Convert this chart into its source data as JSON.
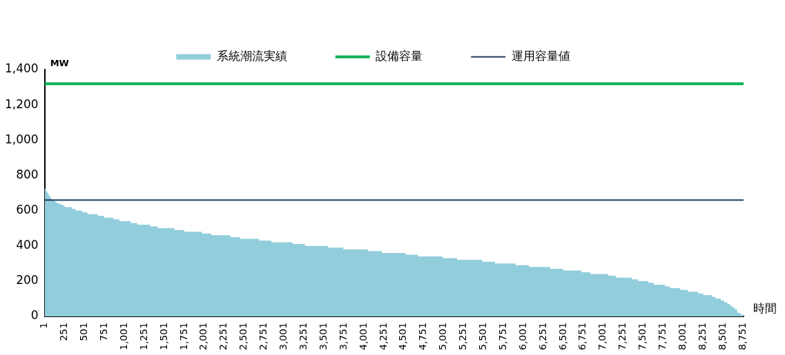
{
  "chart_data": {
    "type": "area",
    "xlabel": "時間",
    "ylabel": "MW",
    "legend": "top",
    "xlim": [
      1,
      8760
    ],
    "ylim": [
      0,
      1400
    ],
    "yticks": [
      0,
      200,
      400,
      600,
      800,
      {
        "value": 1000,
        "label": "1,000"
      },
      {
        "value": 1200,
        "label": "1,200"
      },
      {
        "value": 1400,
        "label": "1,400"
      }
    ],
    "xticks": [
      1,
      251,
      501,
      751,
      {
        "value": 1001,
        "label": "1,001"
      },
      {
        "value": 1251,
        "label": "1,251"
      },
      {
        "value": 1501,
        "label": "1,501"
      },
      {
        "value": 1751,
        "label": "1,751"
      },
      {
        "value": 2001,
        "label": "2,001"
      },
      {
        "value": 2251,
        "label": "2,251"
      },
      {
        "value": 2501,
        "label": "2,501"
      },
      {
        "value": 2751,
        "label": "2,751"
      },
      {
        "value": 3001,
        "label": "3,001"
      },
      {
        "value": 3251,
        "label": "3,251"
      },
      {
        "value": 3501,
        "label": "3,501"
      },
      {
        "value": 3751,
        "label": "3,751"
      },
      {
        "value": 4001,
        "label": "4,001"
      },
      {
        "value": 4251,
        "label": "4,251"
      },
      {
        "value": 4501,
        "label": "4,501"
      },
      {
        "value": 4751,
        "label": "4,751"
      },
      {
        "value": 5001,
        "label": "5,001"
      },
      {
        "value": 5251,
        "label": "5,251"
      },
      {
        "value": 5501,
        "label": "5,501"
      },
      {
        "value": 5751,
        "label": "5,751"
      },
      {
        "value": 6001,
        "label": "6,001"
      },
      {
        "value": 6251,
        "label": "6,251"
      },
      {
        "value": 6501,
        "label": "6,501"
      },
      {
        "value": 6751,
        "label": "6,751"
      },
      {
        "value": 7001,
        "label": "7,001"
      },
      {
        "value": 7251,
        "label": "7,251"
      },
      {
        "value": 7501,
        "label": "7,501"
      },
      {
        "value": 7751,
        "label": "7,751"
      },
      {
        "value": 8001,
        "label": "8,001"
      },
      {
        "value": 8251,
        "label": "8,251"
      },
      {
        "value": 8501,
        "label": "8,501"
      },
      {
        "value": 8751,
        "label": "8,751"
      }
    ],
    "series": [
      {
        "name": "系統潮流実績",
        "color": "#92cddc",
        "x": [
          1,
          20,
          40,
          60,
          86,
          130,
          175,
          234,
          264,
          347,
          347,
          388,
          388,
          471,
          471,
          536,
          536,
          667,
          667,
          747,
          747,
          862,
          862,
          939,
          939,
          1078,
          1078,
          1161,
          1161,
          1324,
          1324,
          1419,
          1419,
          1627,
          1627,
          1751,
          1751,
          1973,
          1973,
          2089,
          2089,
          2329,
          2329,
          2450,
          2450,
          2687,
          2687,
          2841,
          2841,
          3108,
          3108,
          3262,
          3262,
          3552,
          3552,
          3745,
          3745,
          4050,
          4050,
          4228,
          4228,
          4524,
          4524,
          4678,
          4678,
          4989,
          4989,
          5170,
          5170,
          5484,
          5484,
          5646,
          5646,
          5902,
          5902,
          6071,
          6071,
          6337,
          6337,
          6499,
          6499,
          6727,
          6727,
          6840,
          6840,
          7065,
          7065,
          7160,
          7160,
          7358,
          7358,
          7438,
          7438,
          7563,
          7563,
          7634,
          7634,
          7776,
          7776,
          7838,
          7838,
          7966,
          7966,
          8063,
          8063,
          8191,
          8191,
          8256,
          8256,
          8371,
          8371,
          8410,
          8410,
          8475,
          8475,
          8516,
          8516,
          8557,
          8557,
          8587,
          8587,
          8620,
          8620,
          8650,
          8650,
          8680,
          8680,
          8720,
          8720,
          8760
        ],
        "values": [
          728,
          715,
          700,
          685,
          668,
          652,
          641,
          630,
          620,
          620,
          610,
          610,
          600,
          600,
          590,
          590,
          580,
          580,
          570,
          570,
          560,
          560,
          550,
          550,
          540,
          540,
          530,
          530,
          520,
          520,
          510,
          510,
          500,
          500,
          490,
          490,
          480,
          480,
          470,
          470,
          460,
          460,
          450,
          450,
          440,
          440,
          430,
          430,
          420,
          420,
          410,
          410,
          400,
          400,
          390,
          390,
          380,
          380,
          370,
          370,
          360,
          360,
          350,
          350,
          340,
          340,
          330,
          330,
          320,
          320,
          310,
          310,
          300,
          300,
          290,
          290,
          280,
          280,
          270,
          270,
          260,
          260,
          250,
          250,
          240,
          240,
          230,
          230,
          220,
          220,
          210,
          210,
          200,
          200,
          190,
          190,
          180,
          180,
          170,
          170,
          160,
          160,
          150,
          150,
          140,
          140,
          130,
          130,
          120,
          120,
          110,
          110,
          100,
          100,
          90,
          90,
          80,
          80,
          70,
          70,
          60,
          60,
          50,
          50,
          40,
          40,
          20,
          20,
          10,
          10
        ]
      },
      {
        "name": "設備容量",
        "type": "line",
        "color": "#00b050",
        "x": [
          1,
          8760
        ],
        "values": [
          1320,
          1320
        ]
      },
      {
        "name": "運用容量値",
        "type": "line",
        "color": "#1f3864",
        "x": [
          1,
          8760
        ],
        "values": [
          660,
          660
        ]
      }
    ]
  }
}
